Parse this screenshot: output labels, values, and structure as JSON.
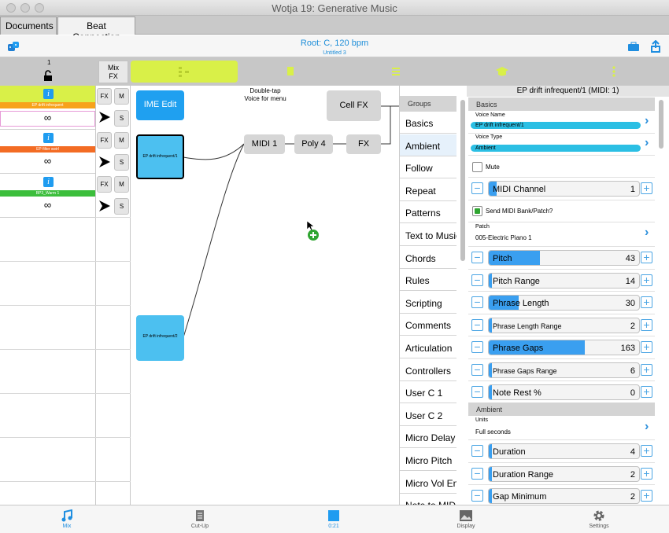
{
  "window": {
    "title": "Wotja 19: Generative Music"
  },
  "doc_tabs": [
    "Documents",
    "Beat Connection"
  ],
  "header": {
    "root": "Root: C, 120 bpm",
    "untitled": "Untitled 3"
  },
  "mix": {
    "count": "1",
    "mix_fx_label": "Mix\nFX"
  },
  "voices": [
    {
      "name": "EP drift infrequent",
      "color": "#f7a21b",
      "value": "∞"
    },
    {
      "name": "EP filter swirl",
      "color": "#f36c24",
      "value": "∞"
    },
    {
      "name": "BP3_Warm 1",
      "color": "#3cbe3c",
      "value": "∞"
    }
  ],
  "lane_buttons": {
    "fx": "FX",
    "m": "M",
    "s": "S"
  },
  "canvas": {
    "ime_edit": "IME Edit",
    "hint": "Double-tap\nVoice for menu",
    "cell_fx": "Cell FX",
    "midi1": "MIDI 1",
    "poly4": "Poly 4",
    "fx": "FX",
    "voice1": "EP drift infrequent/1",
    "voice2": "EP drift infrequent/2"
  },
  "groups": {
    "header": "Groups",
    "items": [
      "Basics",
      "Ambient",
      "Follow",
      "Repeat",
      "Patterns",
      "Text to Music",
      "Chords",
      "Rules",
      "Scripting",
      "Comments",
      "Articulation",
      "Controllers",
      "User C 1",
      "User C 2",
      "Micro Delay",
      "Micro Pitch",
      "Micro Vol En",
      "Note to MIDI"
    ],
    "selected": "Ambient"
  },
  "props": {
    "title": "EP drift infrequent/1 (MIDI: 1)",
    "basics_header": "Basics",
    "voice_name_label": "Voice Name",
    "voice_name_value": "EP drift infrequent/1",
    "voice_type_label": "Voice Type",
    "voice_type_value": "Ambient",
    "mute_label": "Mute",
    "mute_checked": false,
    "midi_channel": {
      "label": "MIDI Channel",
      "value": "1",
      "fill": 0.05
    },
    "send_midi_label": "Send MIDI Bank/Patch?",
    "send_midi_checked": true,
    "patch_label": "Patch",
    "patch_value": "005-Electric Piano 1",
    "sliders": [
      {
        "label": "Pitch",
        "value": "43",
        "fill": 0.34,
        "small": false
      },
      {
        "label": "Pitch Range",
        "value": "14",
        "fill": 0.02,
        "small": false
      },
      {
        "label": "Phrase Length",
        "value": "30",
        "fill": 0.2,
        "small": false
      },
      {
        "label": "Phrase Length Range",
        "value": "2",
        "fill": 0.0,
        "small": true
      },
      {
        "label": "Phrase Gaps",
        "value": "163",
        "fill": 0.64,
        "small": false
      },
      {
        "label": "Phrase Gaps Range",
        "value": "6",
        "fill": 0.02,
        "small": true
      },
      {
        "label": "Note Rest %",
        "value": "0",
        "fill": 0.0,
        "small": false
      }
    ],
    "ambient_header": "Ambient",
    "units_label": "Units",
    "units_value": "Full seconds",
    "ambient_sliders": [
      {
        "label": "Duration",
        "value": "4",
        "fill": 0.02
      },
      {
        "label": "Duration Range",
        "value": "2",
        "fill": 0.01
      },
      {
        "label": "Gap Minimum",
        "value": "2",
        "fill": 0.01
      }
    ]
  },
  "footer": {
    "tabs": [
      {
        "label": "Mix",
        "icon": "music-note-icon",
        "active": true
      },
      {
        "label": "Cut-Up",
        "icon": "document-icon",
        "active": false
      },
      {
        "label": "0:21",
        "icon": "stop-icon",
        "active": true
      },
      {
        "label": "Display",
        "icon": "image-icon",
        "active": false
      },
      {
        "label": "Settings",
        "icon": "gear-icon",
        "active": false
      }
    ]
  },
  "colors": {
    "accent": "#1f9cf0",
    "lime": "#d9f048",
    "add": "#2fa531"
  }
}
